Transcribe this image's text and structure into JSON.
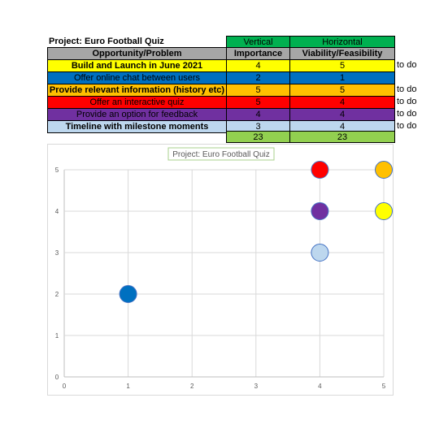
{
  "table": {
    "project_title": "Project: Euro Football Quiz",
    "vertical_label": "Vertical",
    "horizontal_label": "Horizontal",
    "col_problem": "Opportunity/Problem",
    "col_importance": "Importance",
    "col_viability": "Viability/Feasibility",
    "header_green": "#00b050",
    "header_grey": "#a6a6a6",
    "total_green": "#92d050",
    "rows": [
      {
        "problem": "Build and Launch in June 2021",
        "importance": "4",
        "viability": "5",
        "note": "to do",
        "color": "#ffff00"
      },
      {
        "problem": "Offer online chat between users",
        "importance": "2",
        "viability": "1",
        "note": "",
        "color": "#0070c0"
      },
      {
        "problem": "Provide relevant information (history etc)",
        "importance": "5",
        "viability": "5",
        "note": "to do",
        "color": "#ffc000"
      },
      {
        "problem": "Offer an interactive quiz",
        "importance": "5",
        "viability": "4",
        "note": "to do",
        "color": "#ff0000"
      },
      {
        "problem": "Provide an option for feedback",
        "importance": "4",
        "viability": "4",
        "note": "to do",
        "color": "#7030a0"
      },
      {
        "problem": "Timeline with milestone moments",
        "importance": "3",
        "viability": "4",
        "note": "to do",
        "color": "#bdd7ee"
      }
    ],
    "totals": {
      "importance": "23",
      "viability": "23"
    }
  },
  "chart_data": {
    "type": "scatter",
    "title": "Project: Euro Football Quiz",
    "xlim": [
      0,
      5
    ],
    "ylim": [
      0,
      5
    ],
    "x_ticks": [
      "0",
      "1",
      "2",
      "3",
      "4",
      "5"
    ],
    "y_ticks": [
      "0",
      "1",
      "2",
      "3",
      "4",
      "5"
    ],
    "grid": true,
    "points": [
      {
        "x": 1,
        "y": 2,
        "color": "#0070c0"
      },
      {
        "x": 4,
        "y": 5,
        "color": "#ff0000"
      },
      {
        "x": 5,
        "y": 5,
        "color": "#ffc000"
      },
      {
        "x": 4,
        "y": 4,
        "color": "#7030a0"
      },
      {
        "x": 5,
        "y": 4,
        "color": "#ffff00"
      },
      {
        "x": 4,
        "y": 3,
        "color": "#bdd7ee"
      }
    ]
  }
}
